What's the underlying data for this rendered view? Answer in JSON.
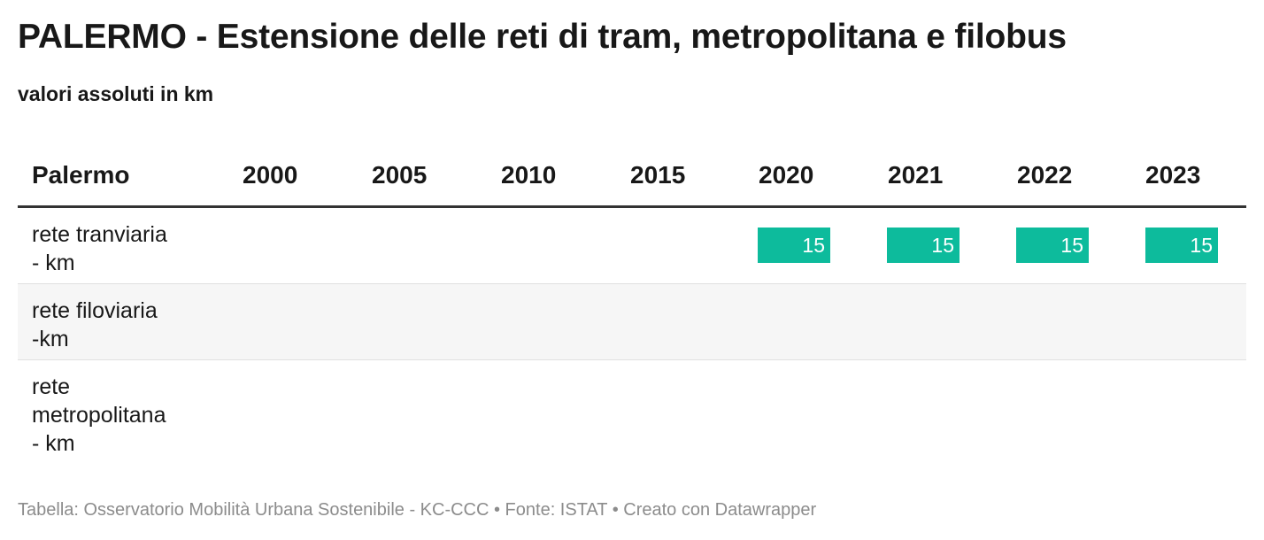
{
  "title": "PALERMO - Estensione delle reti di tram, metropolitana e filobus",
  "subtitle": "valori assoluti in km",
  "footer": "Tabella: Osservatorio Mobilità Urbana Sostenibile - KC-CCC • Fonte: ISTAT • Creato con Datawrapper",
  "colors": {
    "bar": "#0dbb9c",
    "header_rule": "#333333",
    "stripe": "#f6f6f6"
  },
  "chart_data": {
    "type": "table",
    "title": "PALERMO - Estensione delle reti di tram, metropolitana e filobus",
    "subtitle": "valori assoluti in km",
    "columns": [
      "Palermo",
      "2000",
      "2005",
      "2010",
      "2015",
      "2020",
      "2021",
      "2022",
      "2023"
    ],
    "rows": [
      {
        "label": "rete tranviaria - km",
        "label_lines": [
          "rete tranviaria",
          "- km"
        ],
        "values": [
          null,
          null,
          null,
          null,
          15,
          15,
          15,
          15
        ]
      },
      {
        "label": "rete filoviaria -km",
        "label_lines": [
          "rete filoviaria",
          "-km"
        ],
        "values": [
          null,
          null,
          null,
          null,
          null,
          null,
          null,
          null
        ]
      },
      {
        "label": "rete metropolitana - km",
        "label_lines": [
          "rete",
          "metropolitana",
          "- km"
        ],
        "values": [
          null,
          null,
          null,
          null,
          null,
          null,
          null,
          null
        ]
      }
    ]
  }
}
